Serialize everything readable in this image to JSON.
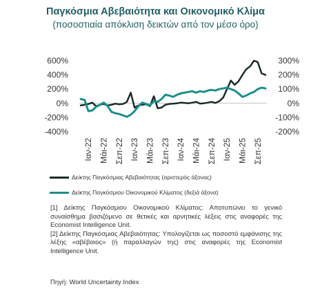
{
  "title": "Παγκόσμια Αβεβαιότητα και Οικονομικό Κλίμα",
  "subtitle": "(ποσοστιαία απόκλιση δεικτών από τον μέσο όρο)",
  "chart_data": {
    "type": "line",
    "x": [
      "2021-11",
      "2021-12",
      "2022-01",
      "2022-02",
      "2022-03",
      "2022-04",
      "2022-05",
      "2022-06",
      "2022-07",
      "2022-08",
      "2022-09",
      "2022-10",
      "2022-11",
      "2022-12",
      "2023-01",
      "2023-02",
      "2023-03",
      "2023-04",
      "2023-05",
      "2023-06",
      "2023-07",
      "2023-08",
      "2023-09",
      "2023-10",
      "2023-11",
      "2023-12",
      "2024-01",
      "2024-02",
      "2024-03",
      "2024-04",
      "2024-05",
      "2024-06",
      "2024-07",
      "2024-08",
      "2024-09",
      "2024-10",
      "2024-11",
      "2024-12",
      "2025-01",
      "2025-02",
      "2025-03",
      "2025-04",
      "2025-05",
      "2025-06",
      "2025-07",
      "2025-08",
      "2025-09",
      "2025-10",
      "2025-11"
    ],
    "x_tick_labels": [
      "Ιαν-22",
      "Μάι-22",
      "Σεπ-22",
      "Ιαν-23",
      "Μάι-23",
      "Σεπ-23",
      "Ιαν-24",
      "Μάι-24",
      "Σεπ-24",
      "Ιαν-25",
      "Μάι-25",
      "Σεπ-25"
    ],
    "x_tick_dates": [
      "2022-01",
      "2022-05",
      "2022-09",
      "2023-01",
      "2023-05",
      "2023-09",
      "2024-01",
      "2024-05",
      "2024-09",
      "2025-01",
      "2025-05",
      "2025-09"
    ],
    "left_axis": {
      "ylim": [
        -400,
        600
      ],
      "ticks": [
        600,
        400,
        200,
        0,
        -200,
        -400
      ],
      "tick_labels": [
        "600%",
        "400%",
        "200%",
        "0%",
        "-200%",
        "-400%"
      ]
    },
    "right_axis": {
      "ylim": [
        -200,
        300
      ],
      "ticks": [
        300,
        200,
        100,
        0,
        -100,
        -200
      ],
      "tick_labels": [
        "300%",
        "200%",
        "100%",
        "0%",
        "-100%",
        "-200%"
      ]
    },
    "series": [
      {
        "name": "Δείκτης Παγκόσμιας Αβεβαιότητας (αριστερός άξονας)",
        "axis": "left",
        "color": "#1a2b2a",
        "values": [
          -30,
          -20,
          -10,
          10,
          -40,
          -20,
          -10,
          -30,
          -20,
          -5,
          -15,
          -10,
          20,
          150,
          -60,
          -30,
          -20,
          -15,
          -40,
          100,
          -70,
          -60,
          -20,
          -10,
          -5,
          0,
          10,
          5,
          0,
          10,
          20,
          -5,
          0,
          10,
          20,
          5,
          30,
          80,
          200,
          320,
          260,
          310,
          400,
          480,
          520,
          600,
          580,
          420,
          400
        ]
      },
      {
        "name": "Δείκτης Παγκόσμιου Οικονομικού Κλίματος (δεξιά άξονα)",
        "axis": "right",
        "color": "#1a8f8c",
        "values": [
          30,
          25,
          -55,
          -50,
          -25,
          -10,
          5,
          -20,
          -60,
          -70,
          -75,
          -85,
          -95,
          -80,
          -55,
          -20,
          5,
          -5,
          -15,
          15,
          10,
          30,
          60,
          55,
          45,
          60,
          70,
          75,
          80,
          85,
          75,
          85,
          80,
          90,
          95,
          90,
          100,
          105,
          110,
          100,
          90,
          70,
          45,
          55,
          70,
          80,
          100,
          110,
          105
        ]
      }
    ],
    "grid": false,
    "legend_position": "bottom-left"
  },
  "notes": [
    "[1] Δείκτης Παγκόσμιου Οικονομικού Κλίματος: Αποτυπώνει το γενικό συναίσθημα βασιζόμενο σε θετικές και αρνητικές λέξεις στις αναφορές της Economist Intelligence Unit.",
    "[2] Δείκτης Παγκόσμιας Αβεβαιότητας: Υπολογίζεται ως ποσοστό εμφάνισης της λέξης «αβέβαιος» (ή παραλλαγών της) στις αναφορές της Economist Intelligence Unit."
  ],
  "source": "Πηγή: World Uncertainty Index"
}
